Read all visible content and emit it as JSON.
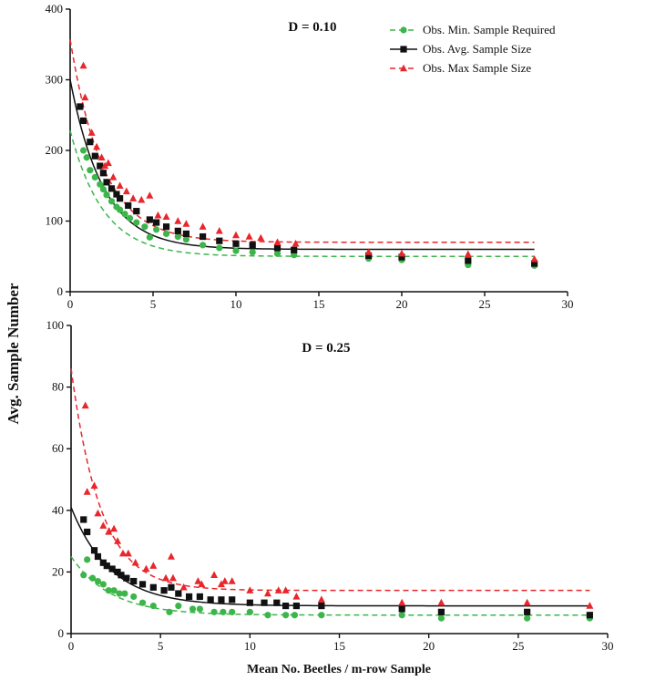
{
  "figure": {
    "ylabel": "Avg. Sample Number",
    "xlabel": "Mean No. Beetles / m-row Sample"
  },
  "legend": {
    "items": [
      {
        "label": "Obs. Min. Sample Required",
        "color": "#3cb54a",
        "marker": "circle",
        "dash": "6,4"
      },
      {
        "label": "Obs. Avg. Sample Size",
        "color": "#111111",
        "marker": "square",
        "dash": ""
      },
      {
        "label": "Obs. Max Sample Size",
        "color": "#e8262b",
        "marker": "triangle",
        "dash": "6,4"
      }
    ]
  },
  "chart_data": [
    {
      "type": "scatter",
      "title": "D = 0.10",
      "xlim": [
        0,
        30
      ],
      "ylim": [
        0,
        400
      ],
      "xticks": [
        0,
        5,
        10,
        15,
        20,
        25,
        30
      ],
      "yticks": [
        0,
        100,
        200,
        300,
        400
      ],
      "series": [
        {
          "name": "Obs. Min. Sample Required",
          "color": "#3cb54a",
          "marker": "circle",
          "dash": "6,4",
          "fit": {
            "a": 50,
            "b": 178,
            "k": 0.5,
            "xmax": 28
          },
          "points": [
            [
              0.8,
              200
            ],
            [
              1.0,
              190
            ],
            [
              1.2,
              172
            ],
            [
              1.5,
              162
            ],
            [
              1.8,
              152
            ],
            [
              2.0,
              145
            ],
            [
              2.2,
              137
            ],
            [
              2.5,
              128
            ],
            [
              2.8,
              120
            ],
            [
              3.0,
              116
            ],
            [
              3.3,
              110
            ],
            [
              3.6,
              104
            ],
            [
              4.0,
              98
            ],
            [
              4.5,
              92
            ],
            [
              4.8,
              77
            ],
            [
              5.2,
              88
            ],
            [
              5.8,
              82
            ],
            [
              6.5,
              78
            ],
            [
              7.0,
              74
            ],
            [
              8.0,
              66
            ],
            [
              9.0,
              62
            ],
            [
              10.0,
              58
            ],
            [
              11.0,
              56
            ],
            [
              12.5,
              54
            ],
            [
              13.5,
              52
            ],
            [
              18.0,
              47
            ],
            [
              20.0,
              45
            ],
            [
              24.0,
              38
            ],
            [
              28.0,
              37
            ]
          ]
        },
        {
          "name": "Obs. Avg. Sample Size",
          "color": "#111111",
          "marker": "square",
          "dash": "",
          "fit": {
            "a": 60,
            "b": 240,
            "k": 0.5,
            "xmax": 28
          },
          "points": [
            [
              0.6,
              262
            ],
            [
              0.8,
              242
            ],
            [
              1.2,
              212
            ],
            [
              1.5,
              192
            ],
            [
              1.8,
              178
            ],
            [
              2.0,
              168
            ],
            [
              2.2,
              155
            ],
            [
              2.5,
              146
            ],
            [
              2.8,
              138
            ],
            [
              3.0,
              132
            ],
            [
              3.5,
              122
            ],
            [
              4.0,
              114
            ],
            [
              4.8,
              102
            ],
            [
              5.2,
              98
            ],
            [
              5.8,
              92
            ],
            [
              6.5,
              86
            ],
            [
              7.0,
              82
            ],
            [
              8.0,
              78
            ],
            [
              9.0,
              72
            ],
            [
              10.0,
              68
            ],
            [
              11.0,
              66
            ],
            [
              12.5,
              62
            ],
            [
              13.5,
              59
            ],
            [
              18.0,
              51
            ],
            [
              20.0,
              49
            ],
            [
              24.0,
              44
            ],
            [
              28.0,
              40
            ]
          ]
        },
        {
          "name": "Obs. Max Sample Size",
          "color": "#e8262b",
          "marker": "triangle",
          "dash": "6,4",
          "fit": {
            "a": 70,
            "b": 287,
            "k": 0.5,
            "xmax": 28
          },
          "points": [
            [
              0.8,
              320
            ],
            [
              0.9,
              275
            ],
            [
              1.3,
              225
            ],
            [
              1.6,
              205
            ],
            [
              1.9,
              190
            ],
            [
              2.1,
              178
            ],
            [
              2.3,
              182
            ],
            [
              2.6,
              162
            ],
            [
              3.0,
              150
            ],
            [
              3.4,
              142
            ],
            [
              3.8,
              132
            ],
            [
              4.3,
              130
            ],
            [
              4.8,
              136
            ],
            [
              5.3,
              108
            ],
            [
              5.8,
              106
            ],
            [
              6.5,
              100
            ],
            [
              7.0,
              96
            ],
            [
              8.0,
              92
            ],
            [
              9.0,
              86
            ],
            [
              10.0,
              80
            ],
            [
              10.8,
              78
            ],
            [
              11.5,
              76
            ],
            [
              12.5,
              70
            ],
            [
              13.6,
              68
            ],
            [
              18.0,
              56
            ],
            [
              20.0,
              54
            ],
            [
              24.0,
              53
            ],
            [
              28.0,
              46
            ]
          ]
        }
      ]
    },
    {
      "type": "scatter",
      "title": "D = 0.25",
      "xlim": [
        0,
        30
      ],
      "ylim": [
        0,
        100
      ],
      "xticks": [
        0,
        5,
        10,
        15,
        20,
        25,
        30
      ],
      "yticks": [
        0,
        20,
        40,
        60,
        80,
        100
      ],
      "series": [
        {
          "name": "Obs. Min. Sample Required",
          "color": "#3cb54a",
          "marker": "circle",
          "dash": "6,4",
          "fit": {
            "a": 6,
            "b": 19,
            "k": 0.45,
            "xmax": 29
          },
          "points": [
            [
              0.7,
              19
            ],
            [
              0.9,
              24
            ],
            [
              1.2,
              18
            ],
            [
              1.5,
              17
            ],
            [
              1.8,
              16
            ],
            [
              2.1,
              14
            ],
            [
              2.4,
              14
            ],
            [
              2.7,
              13
            ],
            [
              3.0,
              13
            ],
            [
              3.5,
              12
            ],
            [
              4.0,
              10
            ],
            [
              4.6,
              9
            ],
            [
              5.5,
              7
            ],
            [
              6.0,
              9
            ],
            [
              6.8,
              8
            ],
            [
              7.2,
              8
            ],
            [
              8.0,
              7
            ],
            [
              8.5,
              7
            ],
            [
              9.0,
              7
            ],
            [
              10.0,
              7
            ],
            [
              11.0,
              6
            ],
            [
              12.0,
              6
            ],
            [
              12.5,
              6
            ],
            [
              14.0,
              6
            ],
            [
              18.5,
              6
            ],
            [
              20.7,
              5
            ],
            [
              25.5,
              5
            ],
            [
              29.0,
              5
            ]
          ]
        },
        {
          "name": "Obs. Avg. Sample Size",
          "color": "#111111",
          "marker": "square",
          "dash": "",
          "fit": {
            "a": 9,
            "b": 32,
            "k": 0.45,
            "xmax": 29
          },
          "points": [
            [
              0.7,
              37
            ],
            [
              0.9,
              33
            ],
            [
              1.3,
              27
            ],
            [
              1.5,
              25
            ],
            [
              1.8,
              23
            ],
            [
              2.0,
              22
            ],
            [
              2.3,
              21
            ],
            [
              2.6,
              20
            ],
            [
              2.8,
              19
            ],
            [
              3.1,
              18
            ],
            [
              3.5,
              17
            ],
            [
              4.0,
              16
            ],
            [
              4.6,
              15
            ],
            [
              5.2,
              14
            ],
            [
              5.6,
              15
            ],
            [
              6.0,
              13
            ],
            [
              6.6,
              12
            ],
            [
              7.2,
              12
            ],
            [
              7.8,
              11
            ],
            [
              8.4,
              11
            ],
            [
              9.0,
              11
            ],
            [
              10.0,
              10
            ],
            [
              10.8,
              10
            ],
            [
              11.5,
              10
            ],
            [
              12.0,
              9
            ],
            [
              12.6,
              9
            ],
            [
              14.0,
              9
            ],
            [
              18.5,
              8
            ],
            [
              20.7,
              7
            ],
            [
              25.5,
              7
            ],
            [
              29.0,
              6
            ]
          ]
        },
        {
          "name": "Obs. Max Sample Size",
          "color": "#e8262b",
          "marker": "triangle",
          "dash": "6,4",
          "fit": {
            "a": 14,
            "b": 72,
            "k": 0.6,
            "xmax": 29
          },
          "points": [
            [
              0.8,
              74
            ],
            [
              0.9,
              46
            ],
            [
              1.3,
              48
            ],
            [
              1.5,
              39
            ],
            [
              1.8,
              35
            ],
            [
              2.1,
              33
            ],
            [
              2.4,
              34
            ],
            [
              2.6,
              30
            ],
            [
              2.9,
              26
            ],
            [
              3.2,
              26
            ],
            [
              3.6,
              23
            ],
            [
              4.2,
              21
            ],
            [
              4.6,
              22
            ],
            [
              5.3,
              18
            ],
            [
              5.6,
              25
            ],
            [
              5.7,
              18
            ],
            [
              6.3,
              15
            ],
            [
              7.1,
              17
            ],
            [
              7.3,
              16
            ],
            [
              8.0,
              19
            ],
            [
              8.4,
              16
            ],
            [
              8.6,
              17
            ],
            [
              9.0,
              17
            ],
            [
              10.0,
              14
            ],
            [
              11.0,
              13
            ],
            [
              11.6,
              14
            ],
            [
              12.0,
              14
            ],
            [
              12.6,
              12
            ],
            [
              14.0,
              11
            ],
            [
              18.5,
              10
            ],
            [
              20.7,
              10
            ],
            [
              25.5,
              10
            ],
            [
              29.0,
              9
            ]
          ]
        }
      ]
    }
  ]
}
